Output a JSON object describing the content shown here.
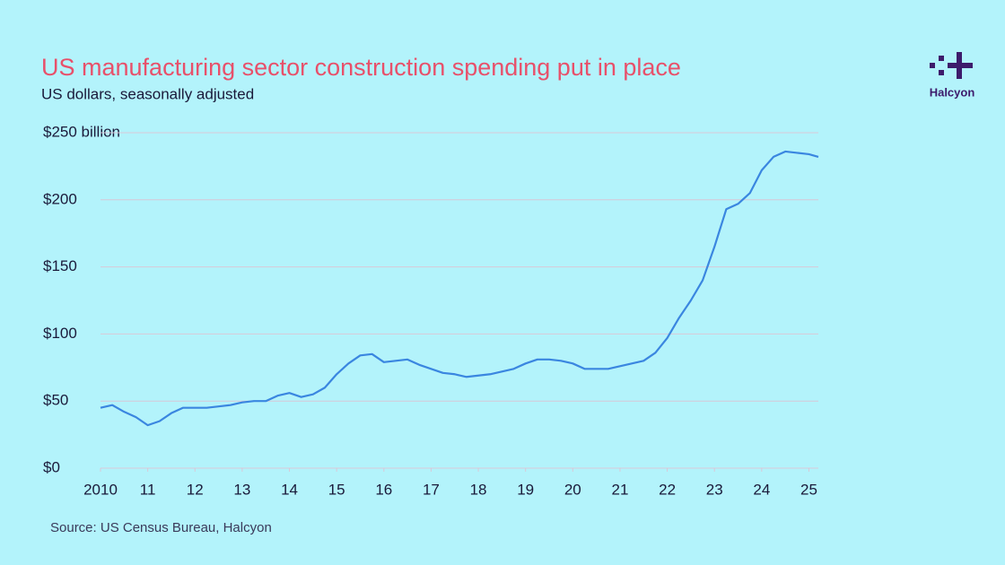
{
  "chart_data": {
    "type": "line",
    "title": "US manufacturing sector construction spending put in place",
    "subtitle": "US dollars, seasonally adjusted",
    "source": "Source: US Census Bureau, Halcyon",
    "brand": "Halcyon",
    "x": [
      2010.0,
      2010.25,
      2010.5,
      2010.75,
      2011.0,
      2011.25,
      2011.5,
      2011.75,
      2012.0,
      2012.25,
      2012.5,
      2012.75,
      2013.0,
      2013.25,
      2013.5,
      2013.75,
      2014.0,
      2014.25,
      2014.5,
      2014.75,
      2015.0,
      2015.25,
      2015.5,
      2015.75,
      2016.0,
      2016.25,
      2016.5,
      2016.75,
      2017.0,
      2017.25,
      2017.5,
      2017.75,
      2018.0,
      2018.25,
      2018.5,
      2018.75,
      2019.0,
      2019.25,
      2019.5,
      2019.75,
      2020.0,
      2020.25,
      2020.5,
      2020.75,
      2021.0,
      2021.25,
      2021.5,
      2021.75,
      2022.0,
      2022.25,
      2022.5,
      2022.75,
      2023.0,
      2023.25,
      2023.5,
      2023.75,
      2024.0,
      2024.25,
      2024.5,
      2024.75,
      2025.0,
      2025.2
    ],
    "series": [
      {
        "name": "Construction spending",
        "color": "#3a86e0",
        "values": [
          45,
          47,
          42,
          38,
          32,
          35,
          41,
          45,
          45,
          45,
          46,
          47,
          49,
          50,
          50,
          54,
          56,
          53,
          55,
          60,
          70,
          78,
          84,
          85,
          79,
          80,
          81,
          77,
          74,
          71,
          70,
          68,
          69,
          70,
          72,
          74,
          78,
          81,
          81,
          80,
          78,
          74,
          74,
          74,
          76,
          78,
          80,
          86,
          97,
          112,
          125,
          140,
          165,
          193,
          197,
          205,
          222,
          232,
          236,
          235,
          234,
          232
        ]
      }
    ],
    "xlim": [
      2010,
      2025.2
    ],
    "xticks": [
      2010,
      {
        "value": 2011,
        "label": "11"
      },
      {
        "value": 2012,
        "label": "12"
      },
      {
        "value": 2013,
        "label": "13"
      },
      {
        "value": 2014,
        "label": "14"
      },
      {
        "value": 2015,
        "label": "15"
      },
      {
        "value": 2016,
        "label": "16"
      },
      {
        "value": 2017,
        "label": "17"
      },
      {
        "value": 2018,
        "label": "18"
      },
      {
        "value": 2019,
        "label": "19"
      },
      {
        "value": 2020,
        "label": "20"
      },
      {
        "value": 2021,
        "label": "21"
      },
      {
        "value": 2022,
        "label": "22"
      },
      {
        "value": 2023,
        "label": "23"
      },
      {
        "value": 2024,
        "label": "24"
      },
      {
        "value": 2025,
        "label": "25"
      }
    ],
    "ylim": [
      0,
      250
    ],
    "yticks": [
      {
        "value": 0,
        "label": "$0"
      },
      {
        "value": 50,
        "label": "$50"
      },
      {
        "value": 100,
        "label": "$100"
      },
      {
        "value": 150,
        "label": "$150"
      },
      {
        "value": 200,
        "label": "$200"
      },
      {
        "value": 250,
        "label": "$250 billion"
      }
    ],
    "grid": true
  }
}
